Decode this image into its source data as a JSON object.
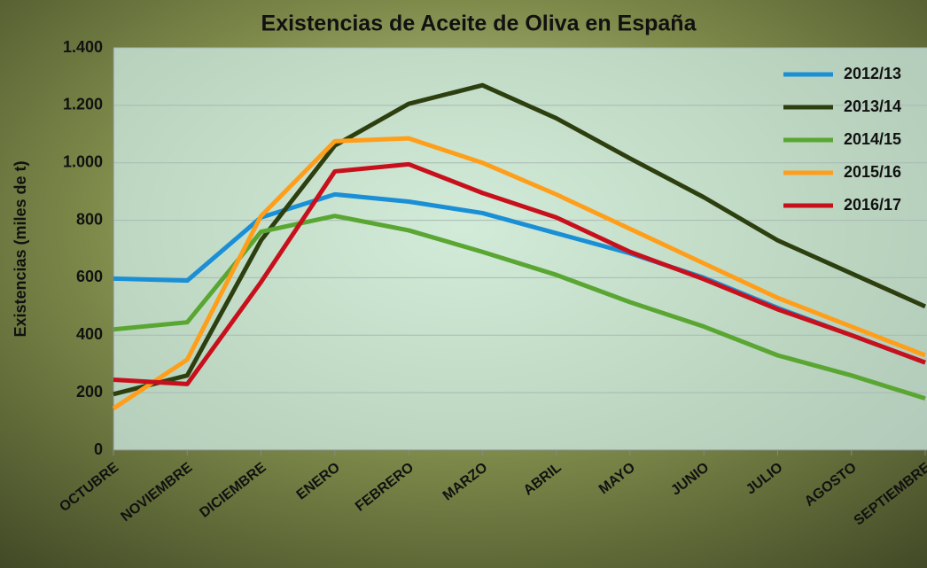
{
  "chart_data": {
    "type": "line",
    "title": "Existencias de Aceite de Oliva en España",
    "y_label": "Existencias (miles de t)",
    "categories": [
      "OCTUBRE",
      "NOVIEMBRE",
      "DICIEMBRE",
      "ENERO",
      "FEBRERO",
      "MARZO",
      "ABRIL",
      "MAYO",
      "JUNIO",
      "JULIO",
      "AGOSTO",
      "SEPTIEMBRE"
    ],
    "series": [
      {
        "name": "2012/13",
        "color": "#1a8fd6",
        "values": [
          597,
          590,
          810,
          890,
          865,
          825,
          755,
          685,
          600,
          495,
          400,
          305
        ]
      },
      {
        "name": "2013/14",
        "color": "#2d3f0f",
        "values": [
          195,
          260,
          730,
          1060,
          1205,
          1270,
          1155,
          1015,
          880,
          730,
          615,
          500
        ]
      },
      {
        "name": "2014/15",
        "color": "#5aa632",
        "values": [
          420,
          445,
          760,
          815,
          765,
          690,
          610,
          515,
          430,
          330,
          260,
          180
        ]
      },
      {
        "name": "2015/16",
        "color": "#ff9e1a",
        "values": [
          145,
          315,
          815,
          1075,
          1085,
          1000,
          890,
          770,
          650,
          530,
          430,
          330
        ]
      },
      {
        "name": "2016/17",
        "color": "#c8101c",
        "values": [
          245,
          230,
          585,
          970,
          995,
          895,
          810,
          690,
          595,
          490,
          400,
          305
        ]
      }
    ],
    "ylim": [
      0,
      1400
    ],
    "yticks": [
      0,
      200,
      400,
      600,
      800,
      {
        "value": 1000,
        "label": "1.000"
      },
      {
        "value": 1200,
        "label": "1.200"
      },
      {
        "value": 1400,
        "label": "1.400"
      }
    ],
    "grid": true,
    "legend": "top-right"
  }
}
